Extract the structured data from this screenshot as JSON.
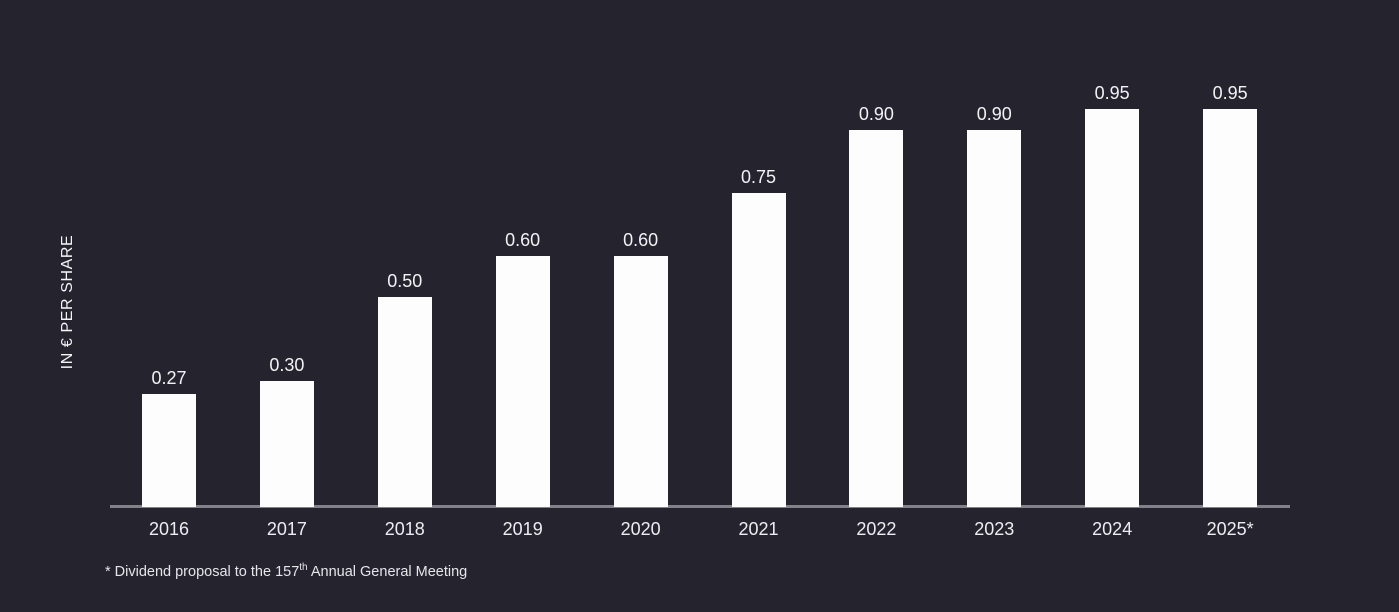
{
  "chart_data": {
    "type": "bar",
    "categories": [
      "2016",
      "2017",
      "2018",
      "2019",
      "2020",
      "2021",
      "2022",
      "2023",
      "2024",
      "2025*"
    ],
    "values": [
      0.27,
      0.3,
      0.5,
      0.6,
      0.6,
      0.75,
      0.9,
      0.9,
      0.95,
      0.95
    ],
    "value_labels": [
      "0.27",
      "0.30",
      "0.50",
      "0.60",
      "0.60",
      "0.75",
      "0.90",
      "0.90",
      "0.95",
      "0.95"
    ],
    "title": "",
    "xlabel": "",
    "ylabel": "IN € PER SHARE",
    "ylim": [
      0,
      0.95
    ],
    "grid": false,
    "legend": "none",
    "colors": {
      "background": "#25232e",
      "bar": "#fdfdfd",
      "axis_line": "#82818a",
      "label_text": "#f2f1f4"
    },
    "footnote": {
      "prefix": "* Dividend proposal to the 157",
      "superscript": "th",
      "suffix": " Annual General Meeting"
    }
  }
}
